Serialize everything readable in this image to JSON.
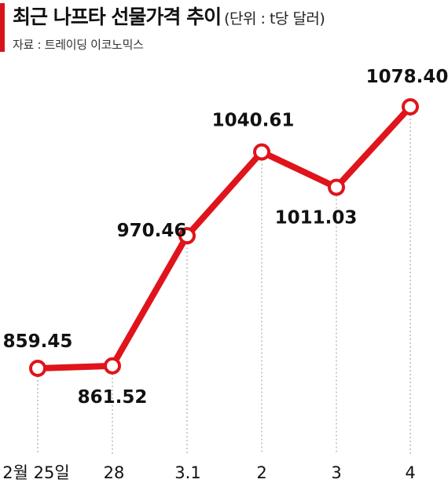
{
  "title": "최근 나프타 선물가격 추이",
  "unit": "(단위 : t당 달러)",
  "source": "자료 : 트레이딩 이코노믹스",
  "colors": {
    "accent": "#d8141b",
    "line": "#e0141b",
    "marker_fill": "#ffffff",
    "guide": "#999999"
  },
  "chart_data": {
    "type": "line",
    "categories": [
      "2월 25일",
      "28",
      "3.1",
      "2",
      "3",
      "4"
    ],
    "values": [
      859.45,
      861.52,
      970.46,
      1040.61,
      1011.03,
      1078.4
    ],
    "value_labels": [
      "859.45",
      "861.52",
      "970.46",
      "1040.61",
      "1011.03",
      "1078.40"
    ],
    "ylim": [
      800,
      1100
    ],
    "grid": false,
    "legend": "none"
  }
}
